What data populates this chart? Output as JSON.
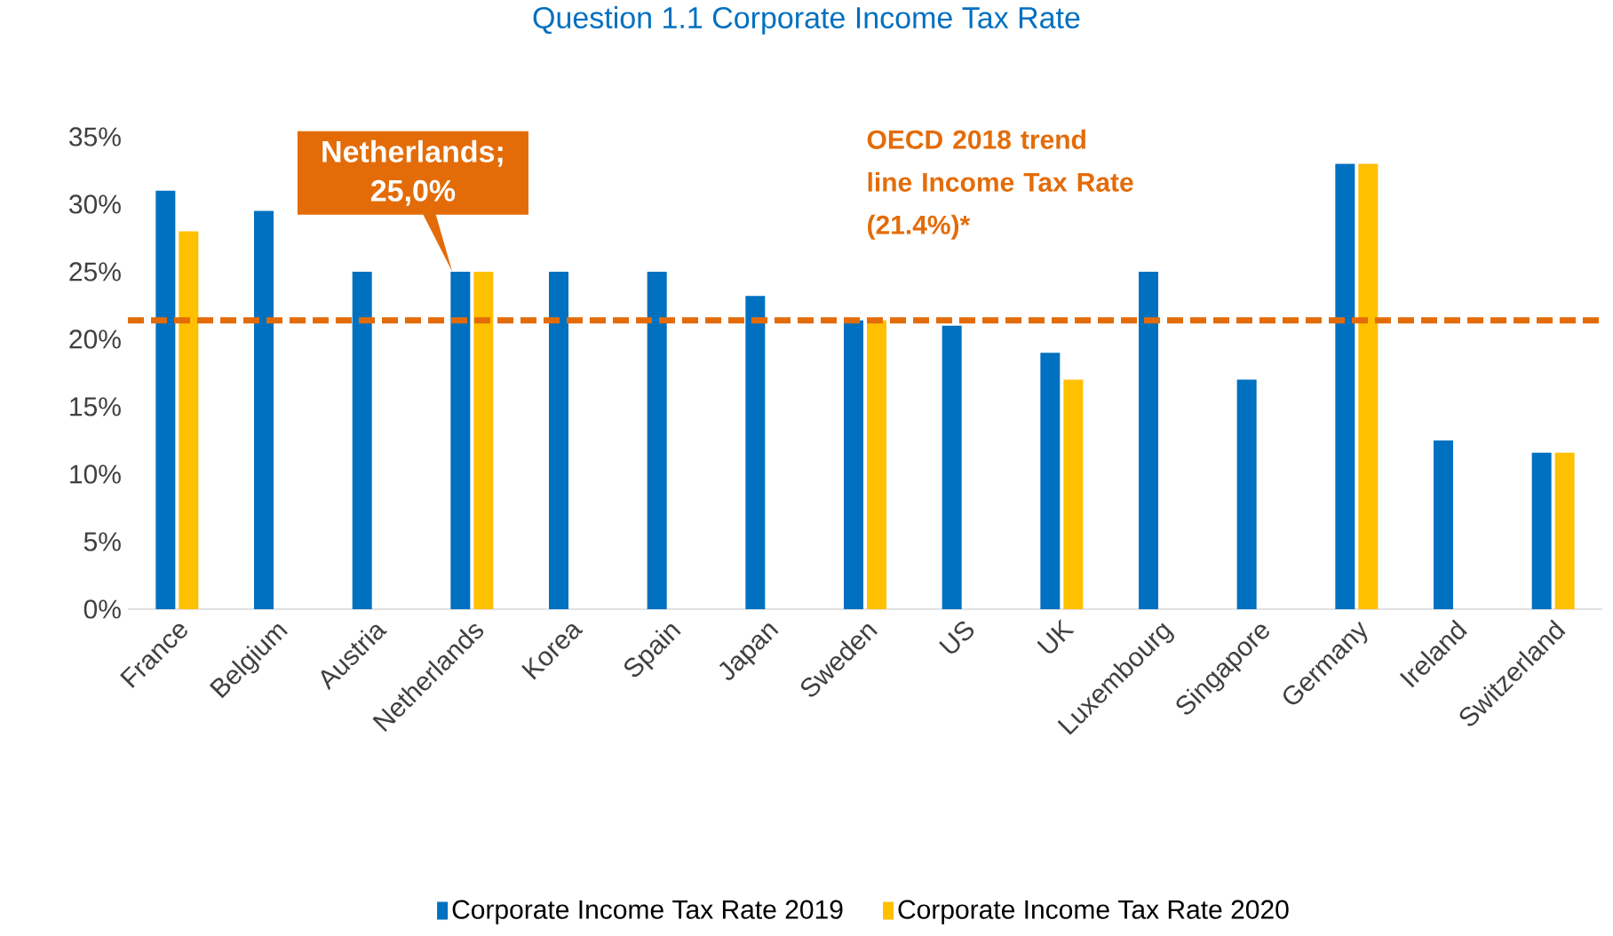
{
  "chart_data": {
    "type": "bar",
    "title": "Question 1.1 Corporate Income Tax Rate",
    "categories": [
      "France",
      "Belgium",
      "Austria",
      "Netherlands",
      "Korea",
      "Spain",
      "Japan",
      "Sweden",
      "US",
      "UK",
      "Luxembourg",
      "Singapore",
      "Germany",
      "Ireland",
      "Switzerland"
    ],
    "series": [
      {
        "name": "Corporate Income Tax Rate 2019",
        "color": "#0070c0",
        "values": [
          31,
          29.5,
          25,
          25,
          25,
          25,
          23.2,
          21.4,
          21,
          19,
          25,
          17,
          33,
          12.5,
          11.6
        ]
      },
      {
        "name": "Corporate Income Tax Rate 2020",
        "color": "#ffc000",
        "values": [
          28,
          null,
          null,
          25,
          null,
          null,
          null,
          21.4,
          null,
          17,
          null,
          null,
          33,
          null,
          11.6
        ]
      }
    ],
    "ylim": [
      0,
      35
    ],
    "yticks": [
      {
        "value": 0,
        "label": "0%"
      },
      {
        "value": 5,
        "label": "5%"
      },
      {
        "value": 10,
        "label": "10%"
      },
      {
        "value": 15,
        "label": "15%"
      },
      {
        "value": 20,
        "label": "20%"
      },
      {
        "value": 25,
        "label": "25%"
      },
      {
        "value": 30,
        "label": "30%"
      },
      {
        "value": 35,
        "label": "35%"
      }
    ],
    "ref_lines": [
      {
        "axis": "y",
        "value": 21.4,
        "label": "OECD 2018 trend line Income Tax Rate (21.4%)*",
        "color": "#e36c09",
        "line_style": "dashed"
      }
    ],
    "annotations": [
      {
        "text": "Netherlands; 25,0%",
        "x": "Netherlands",
        "y": 25
      }
    ],
    "legend": "bottom"
  }
}
